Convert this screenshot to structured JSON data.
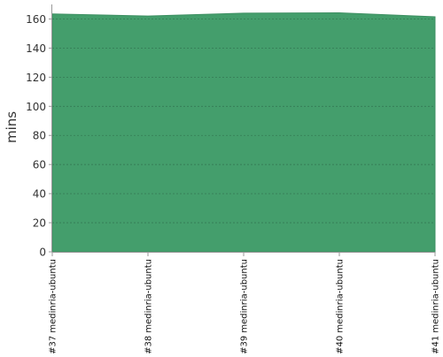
{
  "chart_data": {
    "type": "area",
    "title": "",
    "xlabel": "",
    "ylabel": "mins",
    "categories": [
      "#37 medinria-ubuntu",
      "#38 medinria-ubuntu",
      "#39 medinria-ubuntu",
      "#40 medinria-ubuntu",
      "#41 medinria-ubuntu"
    ],
    "values": [
      163.5,
      162.0,
      164.0,
      164.2,
      161.5
    ],
    "ylim": [
      0,
      170
    ],
    "yticks": [
      0,
      20,
      40,
      60,
      80,
      100,
      120,
      140,
      160
    ],
    "grid": true,
    "legend": "none",
    "colors": {
      "fill": "#449e6c",
      "stroke": "#3d8f62",
      "grid": "#2e6b4a",
      "axis": "#999999",
      "text": "#333333"
    }
  }
}
